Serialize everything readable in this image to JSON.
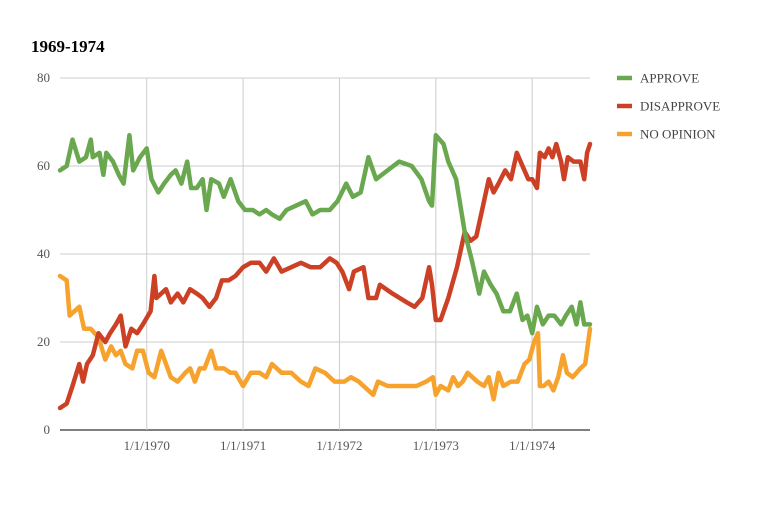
{
  "chart_data": {
    "type": "line",
    "title": "1969-1974",
    "xlabel": "",
    "ylabel": "",
    "ylim": [
      0,
      80
    ],
    "xlim": [
      1969.1,
      1974.6
    ],
    "y_ticks": [
      "0",
      "20",
      "40",
      "60",
      "80"
    ],
    "x_ticks": [
      {
        "value": 1970.0,
        "label": "1/1/1970"
      },
      {
        "value": 1971.0,
        "label": "1/1/1971"
      },
      {
        "value": 1972.0,
        "label": "1/1/1972"
      },
      {
        "value": 1973.0,
        "label": "1/1/1973"
      },
      {
        "value": 1974.0,
        "label": "1/1/1974"
      }
    ],
    "grid": true,
    "legend_position": "right",
    "series": [
      {
        "name": "APPROVE",
        "color": "#6aa84f",
        "points": [
          [
            1969.1,
            59
          ],
          [
            1969.17,
            60
          ],
          [
            1969.23,
            66
          ],
          [
            1969.3,
            61
          ],
          [
            1969.37,
            62
          ],
          [
            1969.42,
            66
          ],
          [
            1969.44,
            62
          ],
          [
            1969.51,
            63
          ],
          [
            1969.55,
            58
          ],
          [
            1969.58,
            63
          ],
          [
            1969.65,
            61
          ],
          [
            1969.71,
            58
          ],
          [
            1969.76,
            56
          ],
          [
            1969.82,
            67
          ],
          [
            1969.86,
            59
          ],
          [
            1969.93,
            62
          ],
          [
            1970.0,
            64
          ],
          [
            1970.05,
            57
          ],
          [
            1970.12,
            54
          ],
          [
            1970.18,
            56
          ],
          [
            1970.25,
            58
          ],
          [
            1970.3,
            59
          ],
          [
            1970.36,
            56
          ],
          [
            1970.42,
            61
          ],
          [
            1970.46,
            55
          ],
          [
            1970.52,
            55
          ],
          [
            1970.58,
            57
          ],
          [
            1970.62,
            50
          ],
          [
            1970.67,
            57
          ],
          [
            1970.75,
            56
          ],
          [
            1970.8,
            53
          ],
          [
            1970.87,
            57
          ],
          [
            1970.95,
            52
          ],
          [
            1971.02,
            50
          ],
          [
            1971.1,
            50
          ],
          [
            1971.17,
            49
          ],
          [
            1971.24,
            50
          ],
          [
            1971.3,
            49
          ],
          [
            1971.38,
            48
          ],
          [
            1971.45,
            50
          ],
          [
            1971.55,
            51
          ],
          [
            1971.65,
            52
          ],
          [
            1971.72,
            49
          ],
          [
            1971.8,
            50
          ],
          [
            1971.9,
            50
          ],
          [
            1971.98,
            52
          ],
          [
            1972.07,
            56
          ],
          [
            1972.14,
            53
          ],
          [
            1972.22,
            54
          ],
          [
            1972.3,
            62
          ],
          [
            1972.38,
            57
          ],
          [
            1972.5,
            59
          ],
          [
            1972.62,
            61
          ],
          [
            1972.75,
            60
          ],
          [
            1972.85,
            57
          ],
          [
            1972.93,
            52
          ],
          [
            1972.96,
            51
          ],
          [
            1973.0,
            67
          ],
          [
            1973.08,
            65
          ],
          [
            1973.13,
            61
          ],
          [
            1973.21,
            57
          ],
          [
            1973.3,
            45
          ],
          [
            1973.38,
            38
          ],
          [
            1973.45,
            31
          ],
          [
            1973.5,
            36
          ],
          [
            1973.57,
            33
          ],
          [
            1973.63,
            31
          ],
          [
            1973.7,
            27
          ],
          [
            1973.77,
            27
          ],
          [
            1973.84,
            31
          ],
          [
            1973.9,
            25
          ],
          [
            1973.95,
            26
          ],
          [
            1974.0,
            22
          ],
          [
            1974.05,
            28
          ],
          [
            1974.11,
            24
          ],
          [
            1974.17,
            26
          ],
          [
            1974.23,
            26
          ],
          [
            1974.3,
            24
          ],
          [
            1974.35,
            26
          ],
          [
            1974.41,
            28
          ],
          [
            1974.46,
            24
          ],
          [
            1974.5,
            29
          ],
          [
            1974.54,
            24
          ],
          [
            1974.6,
            24
          ]
        ]
      },
      {
        "name": "DISAPPROVE",
        "color": "#cc4125",
        "points": [
          [
            1969.1,
            5
          ],
          [
            1969.17,
            6
          ],
          [
            1969.23,
            10
          ],
          [
            1969.3,
            15
          ],
          [
            1969.34,
            11
          ],
          [
            1969.38,
            15
          ],
          [
            1969.44,
            17
          ],
          [
            1969.5,
            22
          ],
          [
            1969.57,
            20
          ],
          [
            1969.62,
            22
          ],
          [
            1969.68,
            24
          ],
          [
            1969.73,
            26
          ],
          [
            1969.78,
            19
          ],
          [
            1969.84,
            23
          ],
          [
            1969.9,
            22
          ],
          [
            1969.96,
            24
          ],
          [
            1970.04,
            27
          ],
          [
            1970.08,
            35
          ],
          [
            1970.1,
            30
          ],
          [
            1970.2,
            32
          ],
          [
            1970.25,
            29
          ],
          [
            1970.32,
            31
          ],
          [
            1970.38,
            29
          ],
          [
            1970.45,
            32
          ],
          [
            1970.52,
            31
          ],
          [
            1970.58,
            30
          ],
          [
            1970.65,
            28
          ],
          [
            1970.72,
            30
          ],
          [
            1970.78,
            34
          ],
          [
            1970.85,
            34
          ],
          [
            1970.92,
            35
          ],
          [
            1971.0,
            37
          ],
          [
            1971.08,
            38
          ],
          [
            1971.17,
            38
          ],
          [
            1971.24,
            36
          ],
          [
            1971.32,
            39
          ],
          [
            1971.4,
            36
          ],
          [
            1971.5,
            37
          ],
          [
            1971.6,
            38
          ],
          [
            1971.7,
            37
          ],
          [
            1971.8,
            37
          ],
          [
            1971.9,
            39
          ],
          [
            1971.97,
            38
          ],
          [
            1972.03,
            36
          ],
          [
            1972.1,
            32
          ],
          [
            1972.15,
            36
          ],
          [
            1972.25,
            37
          ],
          [
            1972.3,
            30
          ],
          [
            1972.38,
            30
          ],
          [
            1972.42,
            33
          ],
          [
            1972.55,
            31
          ],
          [
            1972.7,
            29
          ],
          [
            1972.78,
            28
          ],
          [
            1972.86,
            30
          ],
          [
            1972.93,
            37
          ],
          [
            1972.96,
            33
          ],
          [
            1973.0,
            25
          ],
          [
            1973.05,
            25
          ],
          [
            1973.13,
            30
          ],
          [
            1973.22,
            37
          ],
          [
            1973.3,
            45
          ],
          [
            1973.36,
            43
          ],
          [
            1973.42,
            44
          ],
          [
            1973.48,
            50
          ],
          [
            1973.55,
            57
          ],
          [
            1973.6,
            54
          ],
          [
            1973.65,
            56
          ],
          [
            1973.72,
            59
          ],
          [
            1973.78,
            57
          ],
          [
            1973.84,
            63
          ],
          [
            1973.9,
            60
          ],
          [
            1973.96,
            57
          ],
          [
            1974.0,
            57
          ],
          [
            1974.05,
            55
          ],
          [
            1974.08,
            63
          ],
          [
            1974.13,
            62
          ],
          [
            1974.17,
            64
          ],
          [
            1974.21,
            62
          ],
          [
            1974.25,
            65
          ],
          [
            1974.3,
            61
          ],
          [
            1974.33,
            57
          ],
          [
            1974.37,
            62
          ],
          [
            1974.43,
            61
          ],
          [
            1974.5,
            61
          ],
          [
            1974.54,
            57
          ],
          [
            1974.57,
            63
          ],
          [
            1974.6,
            65
          ]
        ]
      },
      {
        "name": "NO OPINION",
        "color": "#f6a22d",
        "points": [
          [
            1969.1,
            35
          ],
          [
            1969.17,
            34
          ],
          [
            1969.2,
            26
          ],
          [
            1969.25,
            27
          ],
          [
            1969.3,
            28
          ],
          [
            1969.35,
            23
          ],
          [
            1969.42,
            23
          ],
          [
            1969.5,
            21
          ],
          [
            1969.57,
            16
          ],
          [
            1969.63,
            19
          ],
          [
            1969.68,
            17
          ],
          [
            1969.73,
            18
          ],
          [
            1969.78,
            15
          ],
          [
            1969.85,
            14
          ],
          [
            1969.9,
            18
          ],
          [
            1969.96,
            18
          ],
          [
            1970.02,
            13
          ],
          [
            1970.08,
            12
          ],
          [
            1970.15,
            18
          ],
          [
            1970.2,
            15
          ],
          [
            1970.25,
            12
          ],
          [
            1970.32,
            11
          ],
          [
            1970.4,
            13
          ],
          [
            1970.45,
            14
          ],
          [
            1970.5,
            11
          ],
          [
            1970.55,
            14
          ],
          [
            1970.6,
            14
          ],
          [
            1970.67,
            18
          ],
          [
            1970.72,
            14
          ],
          [
            1970.8,
            14
          ],
          [
            1970.87,
            13
          ],
          [
            1970.92,
            13
          ],
          [
            1971.0,
            10
          ],
          [
            1971.08,
            13
          ],
          [
            1971.17,
            13
          ],
          [
            1971.24,
            12
          ],
          [
            1971.3,
            15
          ],
          [
            1971.4,
            13
          ],
          [
            1971.5,
            13
          ],
          [
            1971.6,
            11
          ],
          [
            1971.68,
            10
          ],
          [
            1971.75,
            14
          ],
          [
            1971.85,
            13
          ],
          [
            1971.95,
            11
          ],
          [
            1972.05,
            11
          ],
          [
            1972.12,
            12
          ],
          [
            1972.2,
            11
          ],
          [
            1972.3,
            9
          ],
          [
            1972.35,
            8
          ],
          [
            1972.4,
            11
          ],
          [
            1972.5,
            10
          ],
          [
            1972.6,
            10
          ],
          [
            1972.7,
            10
          ],
          [
            1972.8,
            10
          ],
          [
            1972.9,
            11
          ],
          [
            1972.97,
            12
          ],
          [
            1973.0,
            8
          ],
          [
            1973.05,
            10
          ],
          [
            1973.13,
            9
          ],
          [
            1973.18,
            12
          ],
          [
            1973.23,
            10
          ],
          [
            1973.28,
            11
          ],
          [
            1973.33,
            13
          ],
          [
            1973.38,
            12
          ],
          [
            1973.43,
            11
          ],
          [
            1973.5,
            10
          ],
          [
            1973.55,
            12
          ],
          [
            1973.6,
            7
          ],
          [
            1973.65,
            13
          ],
          [
            1973.7,
            10
          ],
          [
            1973.78,
            11
          ],
          [
            1973.85,
            11
          ],
          [
            1973.92,
            15
          ],
          [
            1973.97,
            16
          ],
          [
            1974.02,
            20
          ],
          [
            1974.06,
            22
          ],
          [
            1974.08,
            10
          ],
          [
            1974.12,
            10
          ],
          [
            1974.17,
            11
          ],
          [
            1974.22,
            9
          ],
          [
            1974.27,
            12
          ],
          [
            1974.32,
            17
          ],
          [
            1974.36,
            13
          ],
          [
            1974.42,
            12
          ],
          [
            1974.5,
            14
          ],
          [
            1974.55,
            15
          ],
          [
            1974.6,
            23
          ]
        ]
      }
    ]
  }
}
